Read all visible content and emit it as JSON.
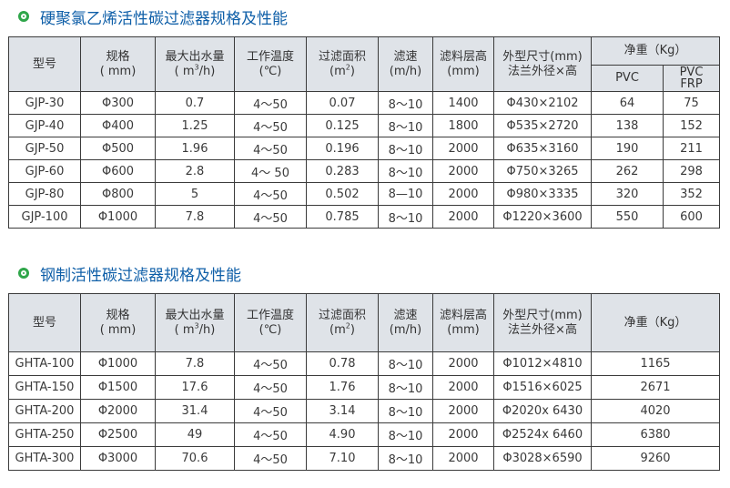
{
  "section1": {
    "title": "硬聚氯乙烯活性碳过滤器规格及性能",
    "headers": {
      "model": "型号",
      "spec": [
        "规格",
        "( mm)"
      ],
      "flow": [
        "最大出水量",
        "( m",
        "3",
        "/h)"
      ],
      "temp": [
        "工作温度",
        "(℃)"
      ],
      "area": [
        "过滤面积",
        "(m",
        "2",
        ")"
      ],
      "speed": [
        "滤速",
        "(m/h)"
      ],
      "layer": [
        "滤料层高",
        "(mm)"
      ],
      "size": [
        "外型尺寸(mm)",
        "法兰外径×高"
      ],
      "weight": "净重（Kg）",
      "pvc": "PVC",
      "pvcfrp": [
        "PVC",
        "FRP"
      ]
    },
    "rows": [
      [
        "GJP-30",
        "Φ300",
        "0.7",
        "4～50",
        "0.07",
        "8～10",
        "1400",
        "Φ430×2102",
        "64",
        "75"
      ],
      [
        "GJP-40",
        "Φ400",
        "1.25",
        "4～50",
        "0.125",
        "8～10",
        "1800",
        "Φ535×2720",
        "138",
        "152"
      ],
      [
        "GJP-50",
        "Φ500",
        "1.96",
        "4～50",
        "0.196",
        "8～10",
        "2000",
        "Φ635×3160",
        "190",
        "211"
      ],
      [
        "GJP-60",
        "Φ600",
        "2.8",
        "4～ 50",
        "0.283",
        "8～10",
        "2000",
        "Φ750×3265",
        "262",
        "298"
      ],
      [
        "GJP-80",
        "Φ800",
        "5",
        "4～50",
        "0.502",
        "8—10",
        "2000",
        "Φ980×3335",
        "320",
        "352"
      ],
      [
        "GJP-100",
        "Φ1000",
        "7.8",
        "4～50",
        "0.785",
        "8～10",
        "2000",
        "Φ1220×3600",
        "550",
        "600"
      ]
    ]
  },
  "section2": {
    "title": "钢制活性碳过滤器规格及性能",
    "headers": {
      "model": "型号",
      "spec": [
        "规格",
        "( mm)"
      ],
      "flow": [
        "最大出水量",
        "( m",
        "3",
        "/h)"
      ],
      "temp": [
        "工作温度",
        "(℃)"
      ],
      "area": [
        "过滤面积",
        "(m",
        "2",
        ")"
      ],
      "speed": [
        "滤速",
        "(m/h)"
      ],
      "layer": [
        "滤料层高",
        "(mm)"
      ],
      "size": [
        "外型尺寸(mm)",
        "法兰外径×高"
      ],
      "weight": "净重（Kg）"
    },
    "rows": [
      [
        "GHTA-100",
        "Φ1000",
        "7.8",
        "4～50",
        "0.78",
        "8～10",
        "2000",
        "Φ1012×4810",
        "1165"
      ],
      [
        "GHTA-150",
        "Φ1500",
        "17.6",
        "4～50",
        "1.76",
        "8～10",
        "2000",
        "Φ1516×6025",
        "2671"
      ],
      [
        "GHTA-200",
        "Φ2000",
        "31.4",
        "4～50",
        "3.14",
        "8～10",
        "2000",
        "Φ2020x 6430",
        "4020"
      ],
      [
        "GHTA-250",
        "Φ2500",
        "49",
        "4～50",
        "4.90",
        "8～10",
        "2000",
        "Φ2524x 6460",
        "6380"
      ],
      [
        "GHTA-300",
        "Φ3000",
        "70.6",
        "4～50",
        "7.10",
        "8～10",
        "2000",
        "Φ3028×6590",
        "9260"
      ]
    ]
  },
  "colors": {
    "title": "#0f5fa8",
    "icon": "#2fa64a",
    "header_bg": "#dfe3e8",
    "border": "#3b3b3b"
  }
}
